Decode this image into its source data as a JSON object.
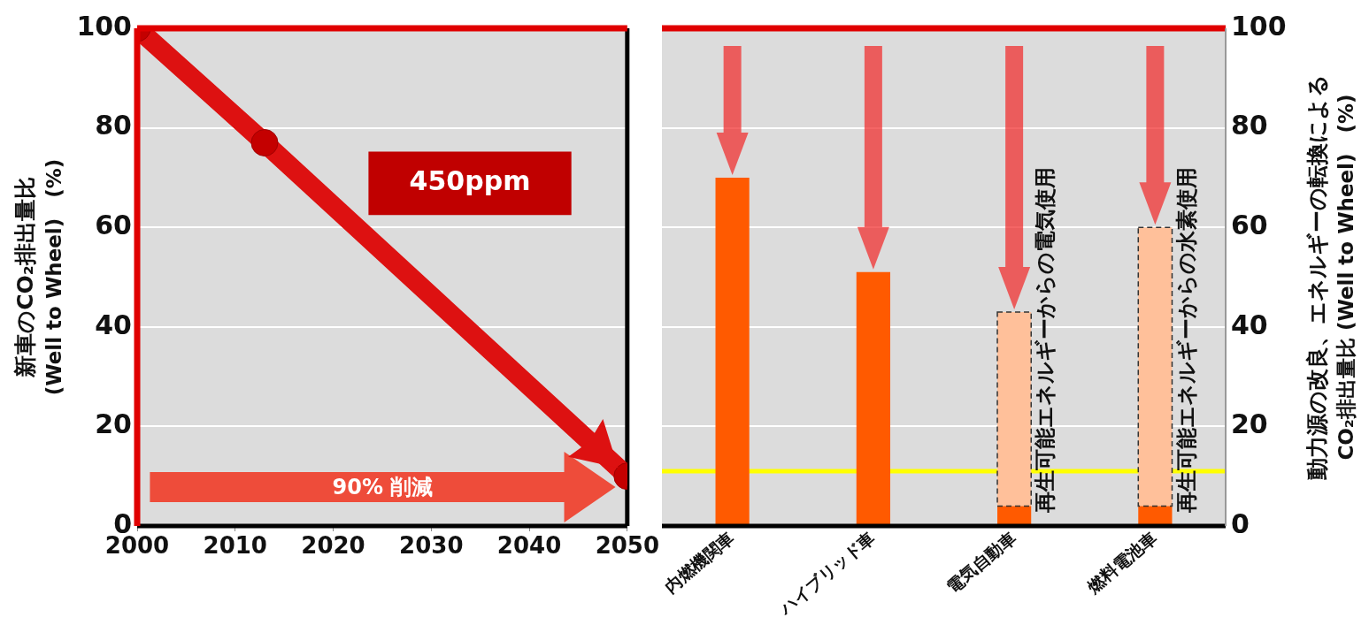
{
  "chart_data": [
    {
      "type": "line",
      "ylabel": "新車のCO₂排出量比\n(Well to Wheel)　(%)",
      "x": [
        2000,
        2013,
        2050
      ],
      "values": [
        100,
        77,
        10
      ],
      "color": "#dd1111",
      "marker": "circle",
      "xlim": [
        2000,
        2050
      ],
      "xticks": [
        2000,
        2010,
        2020,
        2030,
        2040,
        2050
      ],
      "ylim": [
        0,
        100
      ],
      "yticks": [
        0,
        20,
        40,
        60,
        80,
        100
      ],
      "grid": "y",
      "ref_lines": [
        {
          "axis": "x",
          "value": 2050,
          "color": "#000000"
        }
      ],
      "annotations": [
        "450ppm",
        "90% 削減"
      ]
    },
    {
      "type": "bar",
      "categories": [
        "内燃機関車",
        "ハイブリッド車",
        "電気自動車",
        "燃料電池車"
      ],
      "series": [
        {
          "color": "#ff5a00",
          "values": [
            70,
            51,
            4,
            4
          ]
        },
        {
          "color": "#ffc09a",
          "line_style": "dashed",
          "values": [
            null,
            null,
            39,
            56
          ]
        }
      ],
      "stacked": true,
      "ylim": [
        0,
        100
      ],
      "yticks": [
        0,
        20,
        40,
        60,
        80,
        100
      ],
      "grid": "y",
      "ylabel": "動力源の改良、エネルギーの転換による\nCO₂排出量比 (Well to Wheel)　(%)",
      "ref_lines": [
        {
          "axis": "y",
          "value": 11,
          "color": "#ffff00"
        }
      ],
      "annotations": [
        {
          "text": "再生可能エネルギーからの電気使用",
          "x": "電気自動車",
          "y": 4
        },
        {
          "text": "再生可能エネルギーからの水素使用",
          "x": "燃料電池車",
          "y": 4
        }
      ]
    }
  ]
}
